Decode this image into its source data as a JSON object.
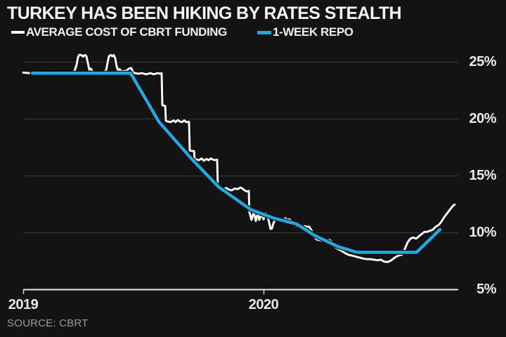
{
  "title": "TURKEY HAS BEEN HIKING BY RATES STEALTH",
  "source": "SOURCE: CBRT",
  "colors": {
    "background": "#131313",
    "gridline": "#3b3b3b",
    "axis": "#e6e6e6",
    "white_line": "#f7f7f7",
    "blue_line": "#26a6df",
    "tick_label": "#ebebeb",
    "source_text": "#9b9b9b"
  },
  "legend": {
    "items": [
      {
        "label": "AVERAGE COST OF CBRT FUNDING",
        "swatch_color": "#f4f4f4"
      },
      {
        "label": "1-WEEK REPO",
        "swatch_color": "#26a6df"
      }
    ]
  },
  "chart_data": {
    "type": "line",
    "title": "TURKEY HAS BEEN HIKING BY RATES STEALTH",
    "xlabel": "",
    "ylabel": "",
    "unit": "%",
    "grid": "horizontal",
    "legend_position": "top-left",
    "x_axis": {
      "range": [
        2019.0,
        2020.81
      ],
      "ticks": [
        {
          "label": "2019",
          "value": 2019.0
        },
        {
          "label": "2020",
          "value": 2020.0
        }
      ]
    },
    "y_axis": {
      "side": "right",
      "range": [
        5,
        25
      ],
      "ticks": [
        {
          "label": "25%",
          "value": 25
        },
        {
          "label": "20%",
          "value": 20
        },
        {
          "label": "15%",
          "value": 15
        },
        {
          "label": "10%",
          "value": 10
        },
        {
          "label": "5%",
          "value": 5
        }
      ]
    },
    "series": [
      {
        "name": "AVERAGE COST OF CBRT FUNDING",
        "color": "#f7f7f7",
        "points": [
          [
            2019.0,
            24.05
          ],
          [
            2019.026,
            24.0
          ],
          [
            2019.05,
            24.1
          ],
          [
            2019.073,
            24.05
          ],
          [
            2019.096,
            24.1
          ],
          [
            2019.12,
            24.0
          ],
          [
            2019.143,
            24.05
          ],
          [
            2019.167,
            24.1
          ],
          [
            2019.19,
            24.05
          ],
          [
            2019.208,
            24.1
          ],
          [
            2019.213,
            24.15
          ],
          [
            2019.222,
            24.7
          ],
          [
            2019.228,
            25.4
          ],
          [
            2019.234,
            25.62
          ],
          [
            2019.243,
            25.58
          ],
          [
            2019.249,
            25.45
          ],
          [
            2019.257,
            25.6
          ],
          [
            2019.263,
            25.5
          ],
          [
            2019.269,
            24.9
          ],
          [
            2019.275,
            24.3
          ],
          [
            2019.281,
            24.4
          ],
          [
            2019.289,
            24.15
          ],
          [
            2019.301,
            24.05
          ],
          [
            2019.313,
            24.1
          ],
          [
            2019.325,
            24.05
          ],
          [
            2019.336,
            24.1
          ],
          [
            2019.345,
            24.25
          ],
          [
            2019.351,
            24.9
          ],
          [
            2019.357,
            25.5
          ],
          [
            2019.365,
            25.6
          ],
          [
            2019.371,
            25.48
          ],
          [
            2019.377,
            25.6
          ],
          [
            2019.383,
            25.3
          ],
          [
            2019.389,
            24.6
          ],
          [
            2019.395,
            24.2
          ],
          [
            2019.401,
            24.35
          ],
          [
            2019.409,
            24.15
          ],
          [
            2019.421,
            24.2
          ],
          [
            2019.43,
            24.2
          ],
          [
            2019.439,
            24.4
          ],
          [
            2019.45,
            24.45
          ],
          [
            2019.456,
            24.1
          ],
          [
            2019.465,
            24.0
          ],
          [
            2019.48,
            23.95
          ],
          [
            2019.494,
            24.0
          ],
          [
            2019.512,
            23.9
          ],
          [
            2019.529,
            24.0
          ],
          [
            2019.544,
            23.9
          ],
          [
            2019.558,
            24.0
          ],
          [
            2019.57,
            23.95
          ],
          [
            2019.576,
            24.0
          ],
          [
            2019.579,
            21.2
          ],
          [
            2019.591,
            21.1
          ],
          [
            2019.594,
            19.8
          ],
          [
            2019.602,
            19.75
          ],
          [
            2019.614,
            19.7
          ],
          [
            2019.626,
            19.85
          ],
          [
            2019.634,
            19.7
          ],
          [
            2019.643,
            19.88
          ],
          [
            2019.652,
            19.75
          ],
          [
            2019.661,
            19.7
          ],
          [
            2019.67,
            19.85
          ],
          [
            2019.678,
            19.7
          ],
          [
            2019.69,
            19.72
          ],
          [
            2019.693,
            17.2
          ],
          [
            2019.711,
            17.15
          ],
          [
            2019.713,
            16.45
          ],
          [
            2019.722,
            16.4
          ],
          [
            2019.731,
            16.35
          ],
          [
            2019.743,
            16.5
          ],
          [
            2019.751,
            16.3
          ],
          [
            2019.763,
            16.45
          ],
          [
            2019.772,
            16.35
          ],
          [
            2019.781,
            16.5
          ],
          [
            2019.789,
            16.4
          ],
          [
            2019.798,
            16.35
          ],
          [
            2019.807,
            16.4
          ],
          [
            2019.81,
            13.9
          ],
          [
            2019.822,
            13.9
          ],
          [
            2019.833,
            13.8
          ],
          [
            2019.845,
            13.9
          ],
          [
            2019.857,
            13.75
          ],
          [
            2019.868,
            13.7
          ],
          [
            2019.88,
            13.85
          ],
          [
            2019.892,
            13.8
          ],
          [
            2019.904,
            13.95
          ],
          [
            2019.912,
            13.85
          ],
          [
            2019.921,
            13.7
          ],
          [
            2019.93,
            13.6
          ],
          [
            2019.939,
            13.65
          ],
          [
            2019.941,
            11.8
          ],
          [
            2019.95,
            11.1
          ],
          [
            2019.959,
            11.8
          ],
          [
            2019.968,
            11.0
          ],
          [
            2019.977,
            11.75
          ],
          [
            2019.982,
            11.1
          ],
          [
            2019.991,
            11.6
          ],
          [
            2020.0,
            11.15
          ],
          [
            2020.009,
            11.7
          ],
          [
            2020.018,
            11.3
          ],
          [
            2020.023,
            10.9
          ],
          [
            2020.029,
            10.3
          ],
          [
            2020.035,
            10.35
          ],
          [
            2020.041,
            10.8
          ],
          [
            2020.047,
            11.05
          ],
          [
            2020.056,
            11.15
          ],
          [
            2020.064,
            11.05
          ],
          [
            2020.073,
            11.2
          ],
          [
            2020.082,
            11.1
          ],
          [
            2020.091,
            11.25
          ],
          [
            2020.099,
            11.1
          ],
          [
            2020.108,
            11.15
          ],
          [
            2020.117,
            10.95
          ],
          [
            2020.126,
            10.85
          ],
          [
            2020.135,
            10.6
          ],
          [
            2020.143,
            10.5
          ],
          [
            2020.152,
            10.55
          ],
          [
            2020.161,
            10.45
          ],
          [
            2020.17,
            10.55
          ],
          [
            2020.178,
            10.5
          ],
          [
            2020.19,
            10.5
          ],
          [
            2020.199,
            10.2
          ],
          [
            2020.205,
            9.9
          ],
          [
            2020.219,
            9.4
          ],
          [
            2020.234,
            9.3
          ],
          [
            2020.249,
            9.25
          ],
          [
            2020.263,
            9.35
          ],
          [
            2020.278,
            9.3
          ],
          [
            2020.287,
            9.1
          ],
          [
            2020.298,
            8.7
          ],
          [
            2020.313,
            8.5
          ],
          [
            2020.327,
            8.35
          ],
          [
            2020.342,
            8.15
          ],
          [
            2020.357,
            8.0
          ],
          [
            2020.371,
            7.95
          ],
          [
            2020.386,
            7.85
          ],
          [
            2020.401,
            7.78
          ],
          [
            2020.415,
            7.7
          ],
          [
            2020.43,
            7.65
          ],
          [
            2020.444,
            7.65
          ],
          [
            2020.459,
            7.6
          ],
          [
            2020.474,
            7.55
          ],
          [
            2020.488,
            7.6
          ],
          [
            2020.503,
            7.42
          ],
          [
            2020.518,
            7.4
          ],
          [
            2020.532,
            7.55
          ],
          [
            2020.547,
            7.8
          ],
          [
            2020.561,
            7.95
          ],
          [
            2020.576,
            8.05
          ],
          [
            2020.585,
            8.4
          ],
          [
            2020.599,
            9.1
          ],
          [
            2020.611,
            9.45
          ],
          [
            2020.623,
            9.55
          ],
          [
            2020.635,
            9.45
          ],
          [
            2020.646,
            9.65
          ],
          [
            2020.658,
            9.85
          ],
          [
            2020.67,
            10.05
          ],
          [
            2020.681,
            10.05
          ],
          [
            2020.693,
            10.15
          ],
          [
            2020.705,
            10.25
          ],
          [
            2020.716,
            10.5
          ],
          [
            2020.728,
            10.65
          ],
          [
            2020.737,
            10.85
          ],
          [
            2020.746,
            11.15
          ],
          [
            2020.754,
            11.4
          ],
          [
            2020.763,
            11.65
          ],
          [
            2020.772,
            11.9
          ],
          [
            2020.781,
            12.15
          ],
          [
            2020.789,
            12.35
          ],
          [
            2020.795,
            12.45
          ]
        ]
      },
      {
        "name": "1-WEEK REPO",
        "color": "#26a6df",
        "points": [
          [
            2019.038,
            24.0
          ],
          [
            2019.447,
            24.0
          ],
          [
            2019.564,
            19.75
          ],
          [
            2019.699,
            16.5
          ],
          [
            2019.813,
            14.0
          ],
          [
            2019.947,
            12.0
          ],
          [
            2020.044,
            11.25
          ],
          [
            2020.137,
            10.75
          ],
          [
            2020.211,
            9.75
          ],
          [
            2020.31,
            8.75
          ],
          [
            2020.389,
            8.25
          ],
          [
            2020.637,
            8.25
          ],
          [
            2020.734,
            10.25
          ]
        ]
      }
    ]
  }
}
